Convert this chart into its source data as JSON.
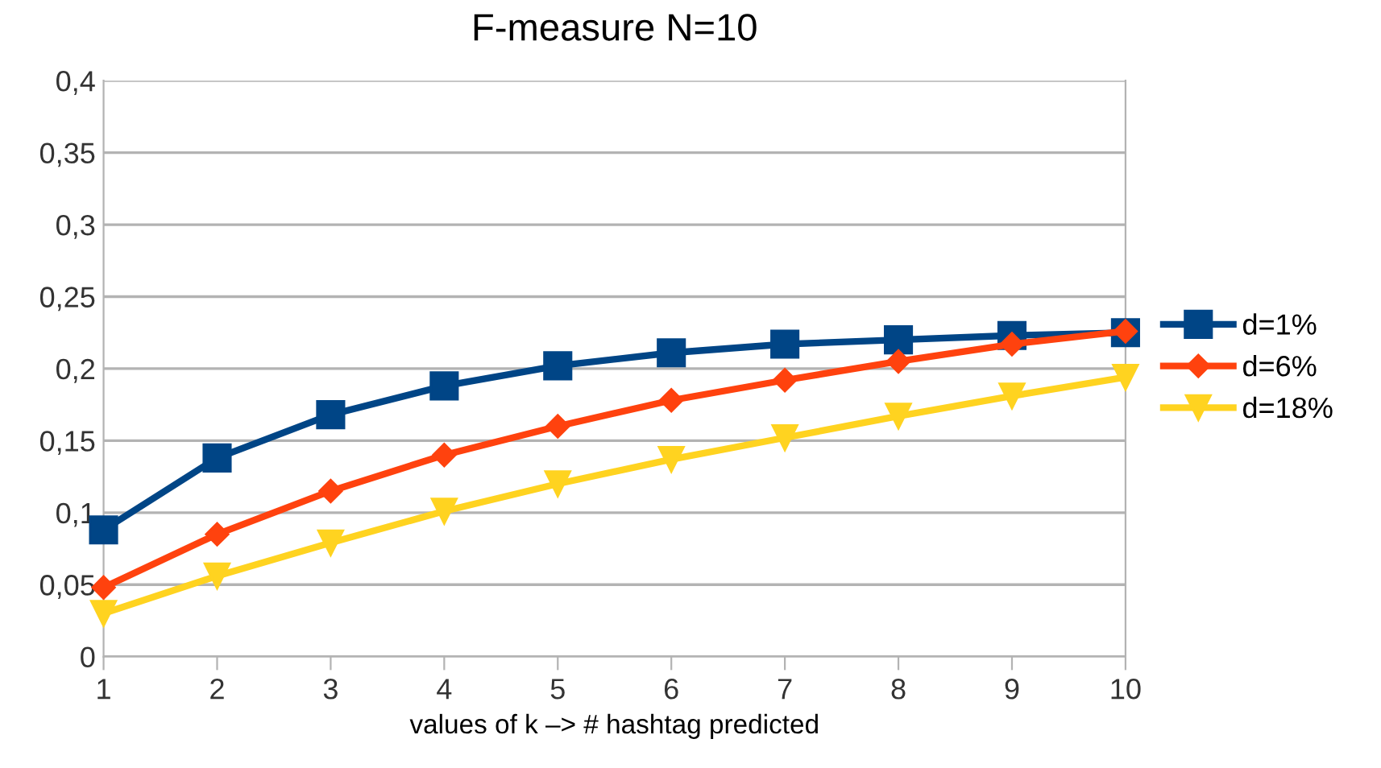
{
  "chart_data": {
    "type": "line",
    "title": "F-measure N=10",
    "xlabel": "values of k –> # hashtag predicted",
    "x": [
      1,
      2,
      3,
      4,
      5,
      6,
      7,
      8,
      9,
      10
    ],
    "series": [
      {
        "name": "d=1%",
        "color": "#004586",
        "marker": "square",
        "values": [
          0.088,
          0.138,
          0.168,
          0.188,
          0.202,
          0.211,
          0.217,
          0.22,
          0.223,
          0.225
        ]
      },
      {
        "name": "d=6%",
        "color": "#ff420e",
        "marker": "diamond",
        "values": [
          0.048,
          0.085,
          0.115,
          0.14,
          0.16,
          0.178,
          0.192,
          0.205,
          0.217,
          0.226
        ]
      },
      {
        "name": "d=18%",
        "color": "#ffd320",
        "marker": "triangle",
        "values": [
          0.03,
          0.056,
          0.079,
          0.101,
          0.12,
          0.137,
          0.152,
          0.167,
          0.181,
          0.194
        ]
      }
    ],
    "xlim": [
      1,
      10
    ],
    "xticks": [
      1,
      2,
      3,
      4,
      5,
      6,
      7,
      8,
      9,
      10
    ],
    "ylim": [
      0,
      0.4
    ],
    "yticks": [
      0,
      {
        "value": 0.05,
        "label": "0,05"
      },
      {
        "value": 0.1,
        "label": "0,1"
      },
      {
        "value": 0.15,
        "label": "0,15"
      },
      {
        "value": 0.2,
        "label": "0,2"
      },
      {
        "value": 0.25,
        "label": "0,25"
      },
      {
        "value": 0.3,
        "label": "0,3"
      },
      {
        "value": 0.35,
        "label": "0,35"
      },
      {
        "value": 0.4,
        "label": "0,4"
      }
    ],
    "grid": "y",
    "legend": "right",
    "line_style": "solid"
  }
}
